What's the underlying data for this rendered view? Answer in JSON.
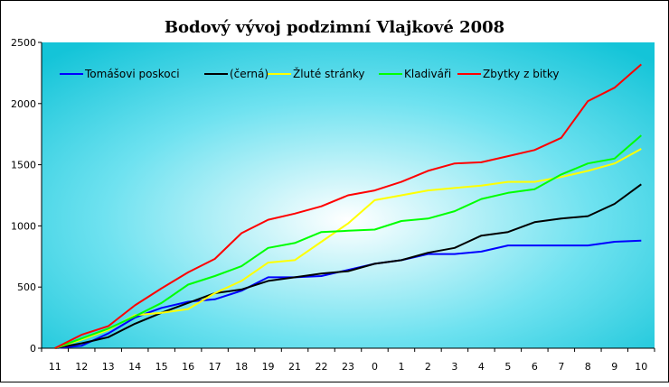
{
  "chart_data": {
    "type": "line",
    "title": "Bodový vývoj podzimní Vlajkové 2008",
    "xlabel": "",
    "ylabel": "",
    "categories": [
      "11",
      "12",
      "13",
      "14",
      "15",
      "16",
      "17",
      "18",
      "19",
      "21",
      "22",
      "23",
      "0",
      "1",
      "2",
      "3",
      "4",
      "5",
      "6",
      "7",
      "8",
      "9",
      "10"
    ],
    "ylim": [
      0,
      2500
    ],
    "yticks": [
      0,
      500,
      1000,
      1500,
      2000,
      2500
    ],
    "grid": false,
    "legend_position": "top",
    "series": [
      {
        "name": "Tomášovi poskoci",
        "color": "#0000ff",
        "values": [
          0,
          20,
          120,
          250,
          330,
          380,
          400,
          470,
          580,
          580,
          590,
          640,
          690,
          720,
          770,
          770,
          790,
          840,
          840,
          840,
          840,
          870,
          880
        ]
      },
      {
        "name": "(černá)",
        "color": "#000000",
        "values": [
          0,
          40,
          90,
          200,
          290,
          370,
          450,
          480,
          550,
          580,
          610,
          630,
          690,
          720,
          780,
          820,
          920,
          950,
          1030,
          1060,
          1080,
          1180,
          1340
        ]
      },
      {
        "name": "Žluté stránky",
        "color": "#ffff00",
        "values": [
          0,
          70,
          150,
          270,
          290,
          320,
          450,
          550,
          700,
          720,
          870,
          1020,
          1210,
          1250,
          1290,
          1310,
          1330,
          1360,
          1360,
          1400,
          1450,
          1510,
          1630
        ]
      },
      {
        "name": "Kladiváři",
        "color": "#00ff00",
        "values": [
          0,
          80,
          160,
          260,
          370,
          520,
          590,
          670,
          820,
          860,
          950,
          960,
          970,
          1040,
          1060,
          1120,
          1220,
          1270,
          1300,
          1420,
          1510,
          1550,
          1740
        ]
      },
      {
        "name": "Zbytky z bitky",
        "color": "#ff0000",
        "values": [
          0,
          110,
          180,
          350,
          490,
          620,
          730,
          940,
          1050,
          1100,
          1160,
          1250,
          1290,
          1360,
          1450,
          1510,
          1520,
          1570,
          1620,
          1720,
          2020,
          2130,
          2320
        ]
      }
    ]
  }
}
